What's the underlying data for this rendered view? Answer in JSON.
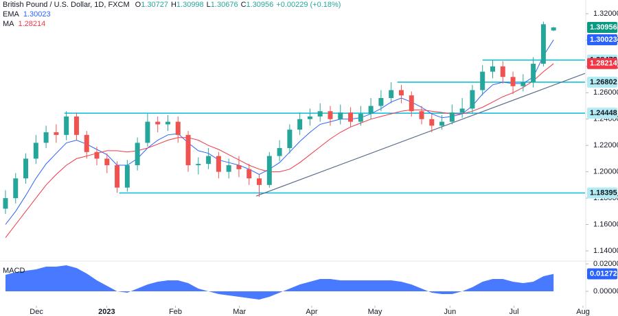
{
  "chart_data": {
    "type": "candlestick",
    "title": "British Pound / U.S. Dollar, 1D, FXCM",
    "change": "+0.00229 (+0.18%)",
    "ohlc_prefixes": [
      "O",
      "H",
      "L",
      "C"
    ],
    "up_color": "#26a69a",
    "down_color": "#ef5350",
    "open": [
      1.172,
      1.18,
      1.195,
      1.21,
      1.222,
      1.23,
      1.228,
      1.242,
      1.228,
      1.215,
      1.21,
      1.205,
      1.188,
      1.205,
      1.222,
      1.238,
      1.236,
      1.238,
      1.228,
      1.205,
      1.206,
      1.212,
      1.2,
      1.205,
      1.202,
      1.195,
      1.19,
      1.212,
      1.218,
      1.232,
      1.24,
      1.242,
      1.246,
      1.24,
      1.245,
      1.238,
      1.244,
      1.25,
      1.256,
      1.262,
      1.258,
      1.246,
      1.24,
      1.235,
      1.238,
      1.245,
      1.248,
      1.262,
      1.276,
      1.28,
      1.272,
      1.265,
      1.268,
      1.282,
      1.30727
    ],
    "high": [
      1.186,
      1.199,
      1.214,
      1.228,
      1.235,
      1.236,
      1.246,
      1.245,
      1.231,
      1.219,
      1.214,
      1.208,
      1.209,
      1.226,
      1.244,
      1.242,
      1.243,
      1.242,
      1.231,
      1.211,
      1.218,
      1.215,
      1.21,
      1.212,
      1.206,
      1.198,
      1.215,
      1.224,
      1.236,
      1.245,
      1.248,
      1.252,
      1.25,
      1.251,
      1.249,
      1.25,
      1.256,
      1.262,
      1.268,
      1.266,
      1.261,
      1.25,
      1.244,
      1.243,
      1.251,
      1.256,
      1.266,
      1.281,
      1.285,
      1.284,
      1.276,
      1.274,
      1.287,
      1.314,
      1.30998
    ],
    "low": [
      1.168,
      1.176,
      1.191,
      1.206,
      1.218,
      1.222,
      1.224,
      1.224,
      1.21,
      1.205,
      1.199,
      1.184,
      1.185,
      1.201,
      1.219,
      1.23,
      1.231,
      1.222,
      1.2,
      1.198,
      1.202,
      1.195,
      1.195,
      1.196,
      1.19,
      1.181,
      1.188,
      1.208,
      1.214,
      1.228,
      1.235,
      1.238,
      1.235,
      1.236,
      1.234,
      1.235,
      1.24,
      1.246,
      1.252,
      1.252,
      1.242,
      1.236,
      1.23,
      1.232,
      1.236,
      1.241,
      1.244,
      1.258,
      1.271,
      1.267,
      1.259,
      1.261,
      1.264,
      1.28,
      1.30676
    ],
    "close": [
      1.18,
      1.195,
      1.21,
      1.222,
      1.23,
      1.228,
      1.242,
      1.228,
      1.215,
      1.21,
      1.205,
      1.188,
      1.205,
      1.222,
      1.238,
      1.236,
      1.238,
      1.228,
      1.205,
      1.206,
      1.212,
      1.2,
      1.205,
      1.202,
      1.195,
      1.19,
      1.212,
      1.218,
      1.232,
      1.24,
      1.242,
      1.246,
      1.24,
      1.245,
      1.238,
      1.244,
      1.25,
      1.256,
      1.262,
      1.258,
      1.246,
      1.24,
      1.235,
      1.238,
      1.245,
      1.248,
      1.262,
      1.276,
      1.28,
      1.272,
      1.265,
      1.268,
      1.282,
      1.312,
      1.30956
    ],
    "close_tag_color": "#089981",
    "series": [
      {
        "name": "EMA",
        "color": "#2962ff",
        "values": [
          1.16,
          1.17,
          1.182,
          1.195,
          1.206,
          1.214,
          1.222,
          1.224,
          1.221,
          1.217,
          1.213,
          1.205,
          1.205,
          1.21,
          1.218,
          1.224,
          1.228,
          1.229,
          1.222,
          1.216,
          1.214,
          1.209,
          1.207,
          1.205,
          1.202,
          1.198,
          1.202,
          1.207,
          1.215,
          1.223,
          1.23,
          1.236,
          1.238,
          1.24,
          1.24,
          1.241,
          1.244,
          1.248,
          1.253,
          1.256,
          1.253,
          1.249,
          1.244,
          1.241,
          1.242,
          1.244,
          1.25,
          1.259,
          1.266,
          1.268,
          1.267,
          1.267,
          1.272,
          1.288,
          1.30023
        ]
      },
      {
        "name": "MA",
        "color": "#f23645",
        "values": [
          1.15,
          1.16,
          1.17,
          1.18,
          1.19,
          1.198,
          1.205,
          1.21,
          1.212,
          1.214,
          1.216,
          1.216,
          1.215,
          1.216,
          1.218,
          1.221,
          1.224,
          1.226,
          1.226,
          1.224,
          1.22,
          1.217,
          1.213,
          1.209,
          1.205,
          1.202,
          1.2,
          1.2,
          1.202,
          1.207,
          1.213,
          1.219,
          1.225,
          1.23,
          1.234,
          1.237,
          1.24,
          1.242,
          1.244,
          1.246,
          1.247,
          1.247,
          1.246,
          1.245,
          1.244,
          1.244,
          1.246,
          1.249,
          1.253,
          1.257,
          1.26,
          1.264,
          1.269,
          1.276,
          1.28214
        ]
      }
    ],
    "levels": [
      {
        "value": 1.28478,
        "start": 47
      },
      {
        "value": 1.26802,
        "start": 38.6
      },
      {
        "value": 1.24448,
        "start": 5.8
      },
      {
        "value": 1.18395,
        "start": 11.2
      }
    ],
    "level_color": "#00bcd4",
    "trendline": {
      "start": [
        24.7,
        1.1816
      ],
      "end": [
        57.1,
        1.2747
      ],
      "color": "#5d6d8c"
    },
    "ylim": [
      1.1327,
      1.3304
    ],
    "yticks": [
      {
        "value": 1.14,
        "label": "1.14000"
      },
      {
        "value": 1.16,
        "label": "1.16000"
      },
      {
        "value": 1.18,
        "label": "1.18000"
      },
      {
        "value": 1.2,
        "label": "1.20000"
      },
      {
        "value": 1.22,
        "label": "1.22000"
      },
      {
        "value": 1.24,
        "label": "1.24000"
      },
      {
        "value": 1.26,
        "label": "1.26000"
      },
      {
        "value": 1.28,
        "label": "1.28000"
      },
      {
        "value": 1.3,
        "label": "1.30000"
      },
      {
        "value": 1.32,
        "label": "1.32000"
      }
    ],
    "xlim": [
      -0.54,
      57.1
    ],
    "xticks": [
      {
        "value": 3.05,
        "label": "Dec"
      },
      {
        "value": 9.97,
        "label": "2023"
      },
      {
        "value": 16.75,
        "label": "Feb"
      },
      {
        "value": 23.05,
        "label": "Mar"
      },
      {
        "value": 30.17,
        "label": "Apr"
      },
      {
        "value": 36.4,
        "label": "May"
      },
      {
        "value": 43.8,
        "label": "Jun"
      },
      {
        "value": 50.1,
        "label": "Jul"
      },
      {
        "value": 56.9,
        "label": "Aug"
      }
    ],
    "macd": {
      "name": "MACD",
      "color": "#2962ff",
      "values": [
        0.012,
        0.014,
        0.015,
        0.016,
        0.018,
        0.018,
        0.019,
        0.017,
        0.013,
        0.008,
        0.004,
        0.0,
        -0.001,
        0.002,
        0.005,
        0.007,
        0.008,
        0.008,
        0.006,
        0.002,
        0.0,
        -0.002,
        -0.003,
        -0.004,
        -0.005,
        -0.006,
        -0.004,
        -0.001,
        0.002,
        0.005,
        0.007,
        0.009,
        0.009,
        0.008,
        0.008,
        0.008,
        0.008,
        0.008,
        0.008,
        0.007,
        0.005,
        0.002,
        -0.001,
        -0.002,
        -0.002,
        0.0,
        0.003,
        0.007,
        0.009,
        0.009,
        0.007,
        0.006,
        0.007,
        0.011,
        0.01272
      ],
      "ylim": [
        -0.01,
        0.0215
      ],
      "yticks": [
        {
          "value": 0.0,
          "label": "0.00000"
        },
        {
          "value": 0.02,
          "label": "0.02000"
        }
      ]
    }
  }
}
